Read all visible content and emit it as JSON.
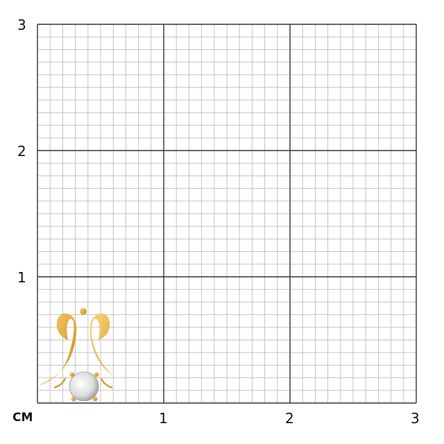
{
  "unit_label": "CM",
  "x_ticks": [
    "1",
    "2",
    "3"
  ],
  "y_ticks": [
    "1",
    "2",
    "3"
  ],
  "grid": {
    "range_cm": [
      0,
      3
    ],
    "minor_step_cm": 0.1,
    "major_step_cm": 1,
    "minor_color": "#bdbdbd",
    "major_color": "#333333"
  },
  "product": {
    "metal_color": "#e9b94a",
    "stone_color": "#e8e8e8"
  }
}
